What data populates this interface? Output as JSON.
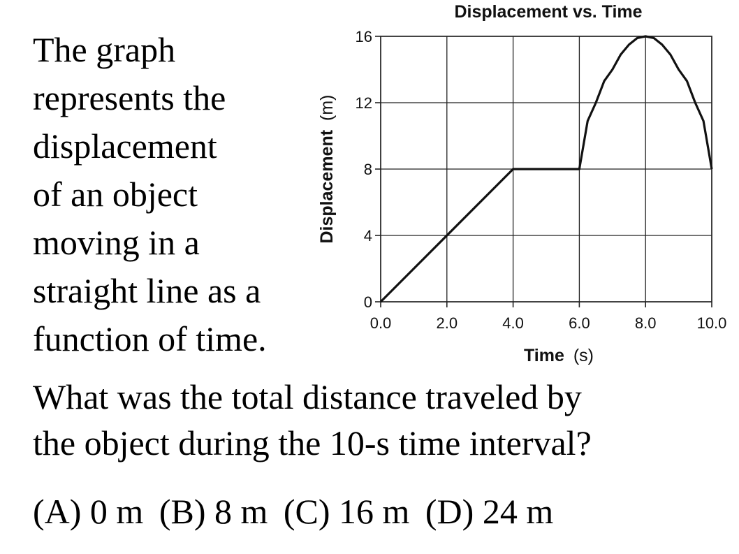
{
  "intro": {
    "lines": [
      "The graph",
      "represents the",
      "displacement",
      "of an object",
      "moving in a",
      "straight line as a",
      "function of time."
    ]
  },
  "question": {
    "lines": [
      "What was the total distance traveled by",
      "the object during the 10-s time interval?"
    ]
  },
  "choices": [
    "(A) 0 m",
    "(B) 8 m",
    "(C) 16 m",
    "(D) 24 m"
  ],
  "chart_data": {
    "type": "line",
    "title": "Displacement vs. Time",
    "xlabel": "Time",
    "xlabel_unit": "(s)",
    "ylabel": "Displacement",
    "ylabel_unit": "(m)",
    "xlim": [
      0,
      10
    ],
    "ylim": [
      0,
      16
    ],
    "x_ticks": [
      "0.0",
      "2.0",
      "4.0",
      "6.0",
      "8.0",
      "10.0"
    ],
    "y_ticks": [
      "0",
      "4",
      "8",
      "12",
      "16"
    ],
    "grid": true,
    "series": [
      {
        "x": [
          0,
          4,
          6,
          6.25,
          6.5,
          6.75,
          7,
          7.25,
          7.5,
          7.75,
          8,
          8.25,
          8.5,
          8.75,
          9,
          9.25,
          9.5,
          9.75,
          10
        ],
        "y": [
          0,
          8,
          8,
          10.9,
          12.0,
          13.3,
          14.0,
          14.9,
          15.5,
          15.9,
          16,
          15.9,
          15.5,
          14.9,
          14.0,
          13.3,
          12.0,
          10.9,
          8
        ],
        "color": "#111111"
      }
    ]
  }
}
